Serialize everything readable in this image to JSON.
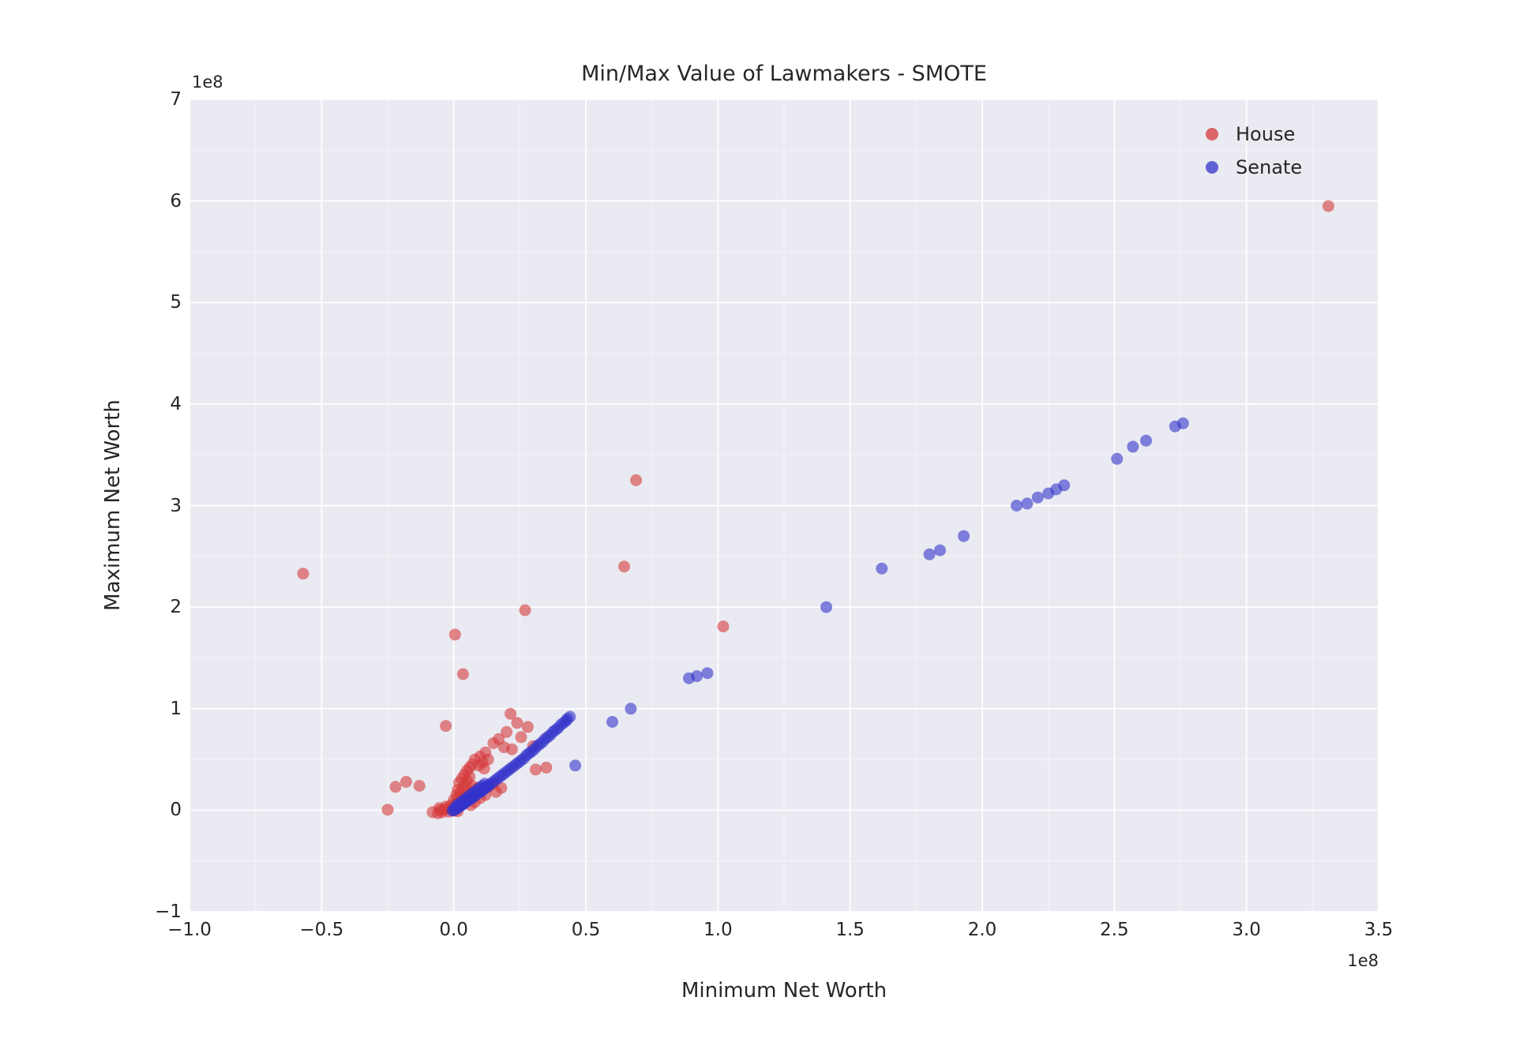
{
  "figure": {
    "background": "#ffffff",
    "plot_background": "#eaeaf2",
    "grid_color": "#ffffff"
  },
  "chart_data": {
    "type": "scatter",
    "title": "Min/Max Value of Lawmakers - SMOTE",
    "xlabel": "Minimum Net Worth",
    "ylabel": "Maximum Net Worth",
    "x_offset_label": "1e8",
    "y_offset_label": "1e8",
    "axis_scale_factor": "1e8",
    "xlim": [
      -1.0,
      3.5
    ],
    "ylim": [
      -1,
      7
    ],
    "x_ticks": [
      -1.0,
      -0.5,
      0.0,
      0.5,
      1.0,
      1.5,
      2.0,
      2.5,
      3.0,
      3.5
    ],
    "x_tick_labels": [
      "−1.0",
      "−0.5",
      "0.0",
      "0.5",
      "1.0",
      "1.5",
      "2.0",
      "2.5",
      "3.0",
      "3.5"
    ],
    "y_ticks": [
      -1,
      0,
      1,
      2,
      3,
      4,
      5,
      6,
      7
    ],
    "y_tick_labels": [
      "−1",
      "0",
      "1",
      "2",
      "3",
      "4",
      "5",
      "6",
      "7"
    ],
    "grid": true,
    "legend_position": "upper right",
    "marker_opacity": 0.6,
    "marker_radius": 7.5,
    "series": [
      {
        "name": "House",
        "color": "#d63a3a",
        "points": [
          [
            -0.57,
            2.33
          ],
          [
            3.31,
            5.95
          ],
          [
            0.69,
            3.25
          ],
          [
            0.645,
            2.4
          ],
          [
            1.02,
            1.81
          ],
          [
            0.27,
            1.97
          ],
          [
            0.005,
            1.73
          ],
          [
            0.035,
            1.34
          ],
          [
            -0.03,
            0.83
          ],
          [
            0.215,
            0.95
          ],
          [
            0.24,
            0.86
          ],
          [
            0.28,
            0.82
          ],
          [
            0.2,
            0.77
          ],
          [
            0.255,
            0.72
          ],
          [
            0.17,
            0.7
          ],
          [
            0.15,
            0.66
          ],
          [
            0.19,
            0.62
          ],
          [
            0.22,
            0.6
          ],
          [
            0.3,
            0.63
          ],
          [
            0.12,
            0.57
          ],
          [
            0.1,
            0.53
          ],
          [
            0.13,
            0.5
          ],
          [
            0.08,
            0.5
          ],
          [
            0.11,
            0.47
          ],
          [
            0.07,
            0.45
          ],
          [
            0.095,
            0.44
          ],
          [
            0.06,
            0.42
          ],
          [
            0.35,
            0.42
          ],
          [
            0.31,
            0.4
          ],
          [
            0.115,
            0.41
          ],
          [
            0.05,
            0.39
          ],
          [
            -0.18,
            0.28
          ],
          [
            -0.13,
            0.24
          ],
          [
            -0.22,
            0.23
          ],
          [
            -0.25,
            0.005
          ],
          [
            -0.08,
            -0.02
          ],
          [
            0.04,
            0.35
          ],
          [
            0.06,
            0.33
          ],
          [
            0.03,
            0.31
          ],
          [
            0.05,
            0.29
          ],
          [
            0.02,
            0.27
          ],
          [
            0.045,
            0.25
          ],
          [
            0.15,
            0.26
          ],
          [
            0.13,
            0.23
          ],
          [
            0.035,
            0.22
          ],
          [
            0.015,
            0.2
          ],
          [
            0.055,
            0.19
          ],
          [
            0.025,
            0.17
          ],
          [
            0.01,
            0.15
          ],
          [
            0.04,
            0.14
          ],
          [
            0.02,
            0.12
          ],
          [
            0.0,
            0.1
          ],
          [
            0.03,
            0.09
          ],
          [
            0.01,
            0.07
          ],
          [
            -0.01,
            0.05
          ],
          [
            0.02,
            0.05
          ],
          [
            0.0,
            0.03
          ],
          [
            -0.02,
            0.02
          ],
          [
            -0.035,
            0.01
          ],
          [
            0.01,
            0.01
          ],
          [
            -0.05,
            0.0
          ],
          [
            -0.045,
            -0.02
          ],
          [
            -0.06,
            -0.03
          ],
          [
            -0.02,
            -0.015
          ],
          [
            0.0,
            -0.005
          ],
          [
            0.015,
            -0.01
          ],
          [
            -0.03,
            0.035
          ],
          [
            -0.055,
            0.02
          ],
          [
            0.065,
            0.05
          ],
          [
            0.08,
            0.08
          ],
          [
            0.1,
            0.12
          ],
          [
            0.12,
            0.15
          ],
          [
            0.09,
            0.22
          ],
          [
            0.07,
            0.24
          ],
          [
            0.16,
            0.18
          ],
          [
            0.18,
            0.22
          ]
        ]
      },
      {
        "name": "Senate",
        "color": "#3333cc",
        "points": [
          [
            2.76,
            3.81
          ],
          [
            2.73,
            3.78
          ],
          [
            2.62,
            3.64
          ],
          [
            2.57,
            3.58
          ],
          [
            2.51,
            3.46
          ],
          [
            2.31,
            3.2
          ],
          [
            2.28,
            3.16
          ],
          [
            2.25,
            3.12
          ],
          [
            2.21,
            3.08
          ],
          [
            2.17,
            3.02
          ],
          [
            2.13,
            3.0
          ],
          [
            1.93,
            2.7
          ],
          [
            1.84,
            2.56
          ],
          [
            1.8,
            2.52
          ],
          [
            1.62,
            2.38
          ],
          [
            1.41,
            2.0
          ],
          [
            0.96,
            1.35
          ],
          [
            0.92,
            1.32
          ],
          [
            0.89,
            1.3
          ],
          [
            0.67,
            1.0
          ],
          [
            0.6,
            0.87
          ],
          [
            0.46,
            0.44
          ],
          [
            0.44,
            0.92
          ],
          [
            0.43,
            0.9
          ],
          [
            0.425,
            0.88
          ],
          [
            0.415,
            0.86
          ],
          [
            0.405,
            0.84
          ],
          [
            0.395,
            0.81
          ],
          [
            0.385,
            0.79
          ],
          [
            0.375,
            0.77
          ],
          [
            0.365,
            0.74
          ],
          [
            0.355,
            0.72
          ],
          [
            0.345,
            0.7
          ],
          [
            0.335,
            0.67
          ],
          [
            0.325,
            0.65
          ],
          [
            0.315,
            0.63
          ],
          [
            0.305,
            0.6
          ],
          [
            0.295,
            0.58
          ],
          [
            0.285,
            0.56
          ],
          [
            0.275,
            0.54
          ],
          [
            0.265,
            0.51
          ],
          [
            0.255,
            0.49
          ],
          [
            0.245,
            0.47
          ],
          [
            0.235,
            0.45
          ],
          [
            0.225,
            0.43
          ],
          [
            0.215,
            0.41
          ],
          [
            0.205,
            0.39
          ],
          [
            0.195,
            0.37
          ],
          [
            0.185,
            0.35
          ],
          [
            0.175,
            0.33
          ],
          [
            0.165,
            0.31
          ],
          [
            0.155,
            0.29
          ],
          [
            0.145,
            0.27
          ],
          [
            0.135,
            0.25
          ],
          [
            0.13,
            0.24
          ],
          [
            0.125,
            0.23
          ],
          [
            0.12,
            0.22
          ],
          [
            0.115,
            0.21
          ],
          [
            0.11,
            0.2
          ],
          [
            0.105,
            0.19
          ],
          [
            0.1,
            0.18
          ],
          [
            0.095,
            0.175
          ],
          [
            0.09,
            0.165
          ],
          [
            0.085,
            0.155
          ],
          [
            0.08,
            0.145
          ],
          [
            0.075,
            0.135
          ],
          [
            0.07,
            0.125
          ],
          [
            0.065,
            0.115
          ],
          [
            0.06,
            0.105
          ],
          [
            0.055,
            0.1
          ],
          [
            0.05,
            0.09
          ],
          [
            0.045,
            0.08
          ],
          [
            0.04,
            0.07
          ],
          [
            0.035,
            0.06
          ],
          [
            0.03,
            0.05
          ],
          [
            0.025,
            0.045
          ],
          [
            0.02,
            0.035
          ],
          [
            0.015,
            0.025
          ],
          [
            0.01,
            0.015
          ],
          [
            0.005,
            0.01
          ],
          [
            0.0,
            0.0
          ],
          [
            -0.005,
            -0.005
          ],
          [
            0.008,
            0.04
          ],
          [
            0.018,
            0.06
          ],
          [
            0.028,
            0.08
          ],
          [
            0.038,
            0.1
          ],
          [
            0.048,
            0.12
          ],
          [
            0.058,
            0.14
          ],
          [
            0.068,
            0.16
          ],
          [
            0.078,
            0.18
          ],
          [
            0.088,
            0.2
          ],
          [
            0.098,
            0.22
          ],
          [
            0.108,
            0.24
          ],
          [
            0.118,
            0.26
          ]
        ]
      }
    ]
  }
}
